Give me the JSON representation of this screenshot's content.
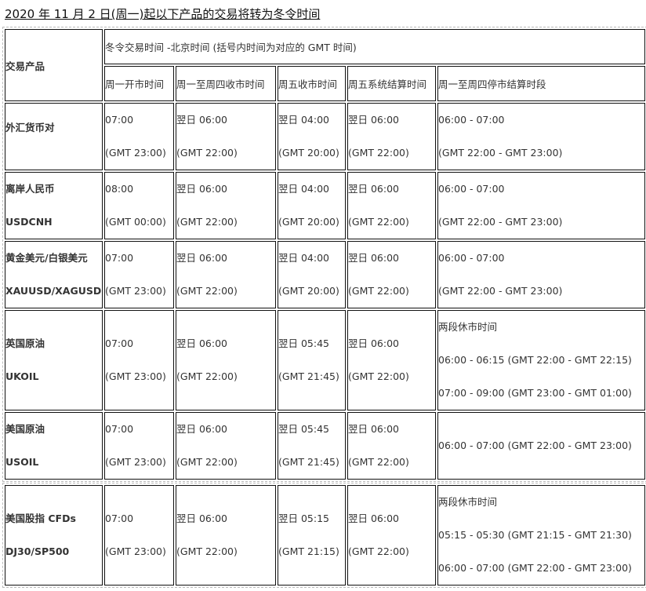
{
  "title": "2020 年 11 月 2 日(周一)起以下产品的交易将转为冬令时间",
  "header": {
    "product": "交易产品",
    "group": "冬令交易时间  -北京时间 (括号内时间为对应的 GMT 时间)",
    "cols": [
      "周一开市时间",
      "周一至周四收市时间",
      "周五收市时间",
      "周五系统结算时间",
      "周一至周四停市结算时段"
    ]
  },
  "rows": [
    {
      "name": "外汇货币对",
      "code": "",
      "open": [
        "07:00",
        "(GMT 23:00)"
      ],
      "close": [
        "翌日 06:00",
        "(GMT 22:00)"
      ],
      "fri": [
        "翌日 04:00",
        "(GMT 20:00)"
      ],
      "settle": [
        "翌日 06:00",
        "(GMT 22:00)"
      ],
      "halt": [
        "06:00 - 07:00",
        "(GMT 22:00 - GMT 23:00)"
      ]
    },
    {
      "name": "离岸人民币",
      "code": "USDCNH",
      "open": [
        "08:00",
        "(GMT 00:00)"
      ],
      "close": [
        "翌日 06:00",
        "(GMT 22:00)"
      ],
      "fri": [
        "翌日 04:00",
        "(GMT 20:00)"
      ],
      "settle": [
        "翌日 06:00",
        "(GMT 22:00)"
      ],
      "halt": [
        "06:00 - 07:00",
        "(GMT 22:00 - GMT 23:00)"
      ]
    },
    {
      "name": "黄金美元/白银美元",
      "code": "XAUUSD/XAGUSD",
      "open": [
        "07:00",
        "(GMT 23:00)"
      ],
      "close": [
        "翌日 06:00",
        "(GMT 22:00)"
      ],
      "fri": [
        "翌日 04:00",
        "(GMT 20:00)"
      ],
      "settle": [
        "翌日 06:00",
        "(GMT 22:00)"
      ],
      "halt": [
        "06:00 - 07:00",
        "(GMT 22:00 - GMT 23:00)"
      ]
    },
    {
      "name": "英国原油",
      "code": "UKOIL",
      "open": [
        "07:00",
        "(GMT 23:00)"
      ],
      "close": [
        "翌日 06:00",
        "(GMT 22:00)"
      ],
      "fri": [
        "翌日 05:45",
        "(GMT 21:45)"
      ],
      "settle": [
        "翌日 06:00",
        "(GMT 22:00)"
      ],
      "halt": [
        "两段休市时间",
        "06:00 - 06:15 (GMT 22:00 - GMT 22:15)",
        "07:00 - 09:00 (GMT 23:00 - GMT 01:00)"
      ]
    },
    {
      "name": "美国原油",
      "code": "USOIL",
      "open": [
        "07:00",
        "(GMT 23:00)"
      ],
      "close": [
        "翌日 06:00",
        "(GMT 22:00)"
      ],
      "fri": [
        "翌日 05:45",
        "(GMT 21:45)"
      ],
      "settle": [
        "翌日 06:00",
        "(GMT 22:00)"
      ],
      "halt": [
        "06:00 - 07:00 (GMT 22:00 - GMT 23:00)"
      ]
    },
    {
      "name": "美国股指 CFDs",
      "code": "DJ30/SP500",
      "open": [
        "07:00",
        "(GMT 23:00)"
      ],
      "close": [
        "翌日 06:00",
        "(GMT 22:00)"
      ],
      "fri": [
        "翌日 05:15",
        "(GMT 21:15)"
      ],
      "settle": [
        "翌日 06:00",
        "(GMT 22:00)"
      ],
      "halt": [
        "两段休市时间",
        "05:15 - 05:30 (GMT 21:15 - GMT 21:30)",
        "06:00 - 07:00 (GMT 22:00 - GMT 23:00)"
      ]
    }
  ]
}
